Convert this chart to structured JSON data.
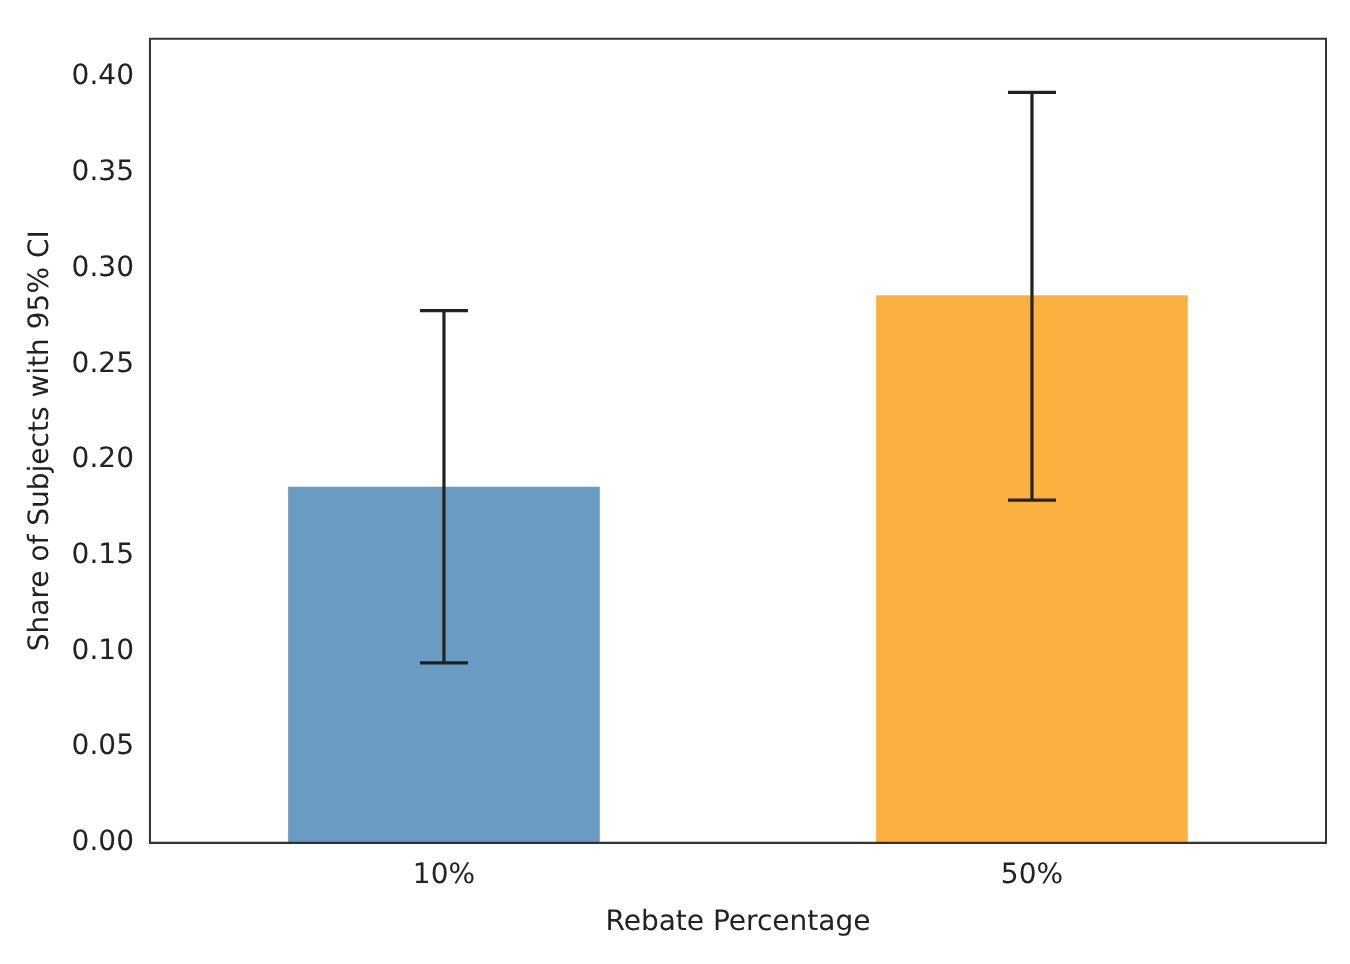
{
  "chart_data": {
    "type": "bar",
    "xlabel": "Rebate Percentage",
    "ylabel": "Share of Subjects with 95% CI",
    "categories": [
      "10%",
      "50%"
    ],
    "values": [
      0.186,
      0.286
    ],
    "colors": [
      "#6a9bc3",
      "#fbb040"
    ],
    "errors": [
      [
        0.094,
        0.278
      ],
      [
        0.179,
        0.392
      ]
    ],
    "ylim": [
      0,
      0.42
    ],
    "yticks": [
      {
        "value": 0,
        "label": "0.00"
      },
      {
        "value": 0.05,
        "label": "0.05"
      },
      {
        "value": 0.1,
        "label": "0.10"
      },
      {
        "value": 0.15,
        "label": "0.15"
      },
      {
        "value": 0.2,
        "label": "0.20"
      },
      {
        "value": 0.25,
        "label": "0.25"
      },
      {
        "value": 0.3,
        "label": "0.30"
      },
      {
        "value": 0.35,
        "label": "0.35"
      },
      {
        "value": 0.4,
        "label": "0.40"
      }
    ],
    "grid": false,
    "legend": false
  }
}
